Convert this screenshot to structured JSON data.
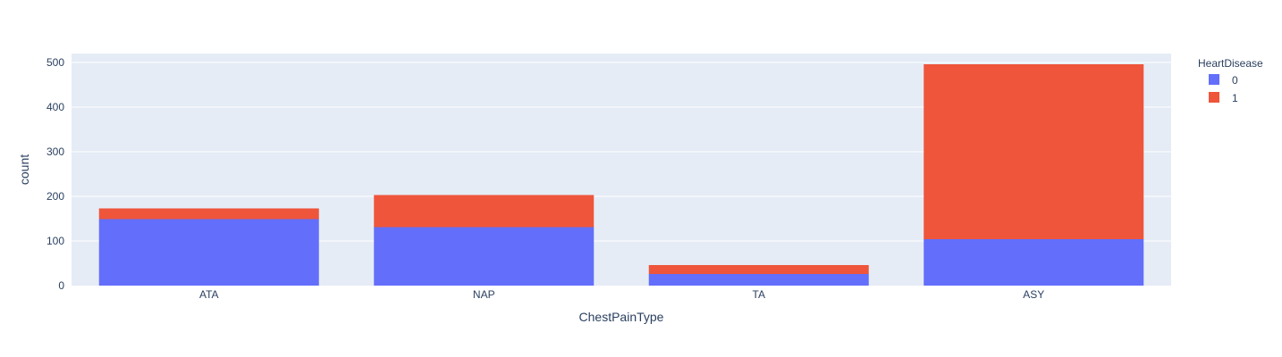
{
  "chart_data": {
    "type": "bar",
    "barmode": "stack",
    "categories": [
      "ATA",
      "NAP",
      "TA",
      "ASY"
    ],
    "series": [
      {
        "name": "0",
        "values": [
          149,
          131,
          26,
          104
        ],
        "color": "#636efa"
      },
      {
        "name": "1",
        "values": [
          24,
          72,
          20,
          392
        ],
        "color": "#ef553b"
      }
    ],
    "xlabel": "ChestPainType",
    "ylabel": "count",
    "ylim": [
      0,
      520
    ],
    "yticks": [
      0,
      100,
      200,
      300,
      400,
      500
    ],
    "grid": true,
    "legend": {
      "title": "HeartDisease",
      "placement": "top-right"
    },
    "colors": {
      "plot_bg": "#e5ecf6",
      "grid": "#ffffff",
      "text": "#2a3f5f"
    }
  }
}
